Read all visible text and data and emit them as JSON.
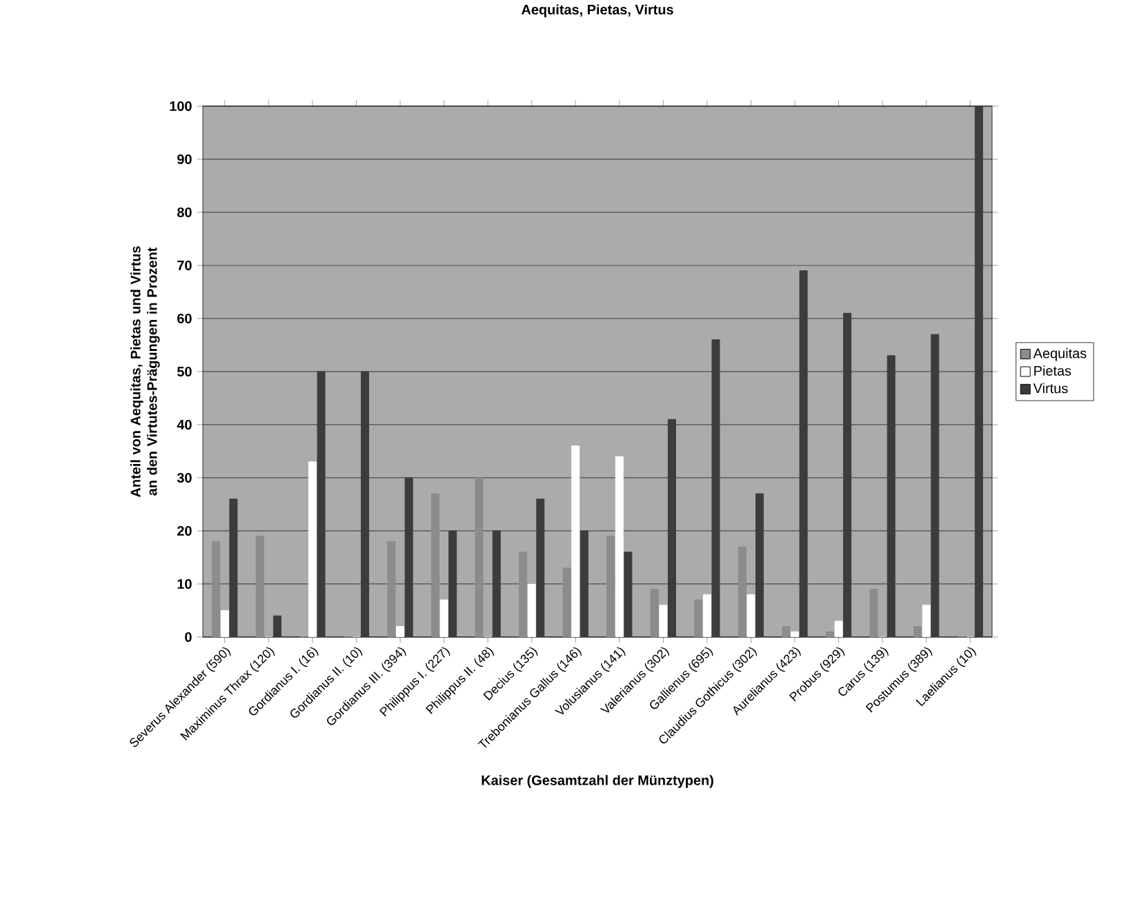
{
  "chart_data": {
    "type": "bar",
    "title": "Aequitas, Pietas, Virtus",
    "xlabel": "Kaiser (Gesamtzahl der Münztypen)",
    "ylabel": "Anteil von Aequitas, Pietas und Virtus an den Virtutes-Prägungen in Prozent",
    "categories": [
      "Severus Alexander (590)",
      "Maximinus Thrax (120)",
      "Gordianus I. (16)",
      "Gordianus II. (10)",
      "Gordianus III. (394)",
      "Philippus I. (227)",
      "Philippus II. (48)",
      "Decius (135)",
      "Trebonianus Gallus (146)",
      "Volusianus (141)",
      "Valerianus (302)",
      "Gallienus (695)",
      "Claudius Gothicus (302)",
      "Aurelianus (423)",
      "Probus (929)",
      "Carus (139)",
      "Postumus (389)",
      "Laelianus (10)"
    ],
    "series": [
      {
        "name": "Aequitas",
        "color": "#8c8c8c",
        "values": [
          18,
          19,
          0,
          0,
          18,
          27,
          30,
          16,
          13,
          19,
          9,
          7,
          17,
          2,
          1,
          9,
          2,
          0
        ]
      },
      {
        "name": "Pietas",
        "color": "#ffffff",
        "values": [
          5,
          0,
          33,
          0,
          2,
          7,
          0,
          10,
          36,
          34,
          6,
          8,
          8,
          1,
          3,
          0,
          6,
          0
        ]
      },
      {
        "name": "Virtus",
        "color": "#3c3c3c",
        "values": [
          26,
          4,
          50,
          50,
          30,
          20,
          20,
          26,
          20,
          16,
          41,
          56,
          27,
          69,
          61,
          53,
          57,
          100
        ]
      }
    ],
    "ylim": [
      0,
      100
    ],
    "yticks": [
      0,
      10,
      20,
      30,
      40,
      50,
      60,
      70,
      80,
      90,
      100
    ],
    "grid": "y",
    "legend": "right"
  }
}
